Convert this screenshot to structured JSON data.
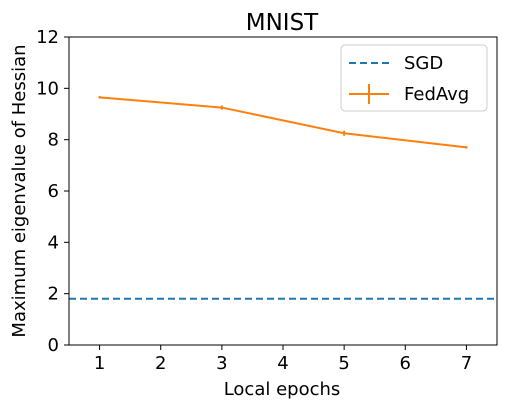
{
  "chart_data": {
    "type": "line",
    "title": "MNIST",
    "xlabel": "Local epochs",
    "ylabel": "Maximum eigenvalue of Hessian",
    "xlim": [
      0.5,
      7.5
    ],
    "ylim": [
      0,
      12
    ],
    "xticks": [
      1,
      2,
      3,
      4,
      5,
      6,
      7
    ],
    "yticks": [
      0,
      2,
      4,
      6,
      8,
      10,
      12
    ],
    "grid": false,
    "legend_position": "top-right",
    "series": [
      {
        "name": "SGD",
        "style": "dashed-horizontal",
        "color": "#1f77b4",
        "value": 1.8
      },
      {
        "name": "FedAvg",
        "style": "solid-errorbar",
        "color": "#ff7f0e",
        "x": [
          1,
          3,
          5,
          7
        ],
        "y": [
          9.65,
          9.25,
          8.25,
          7.7
        ],
        "yerr": [
          0.05,
          0.08,
          0.1,
          0.05
        ]
      }
    ]
  }
}
